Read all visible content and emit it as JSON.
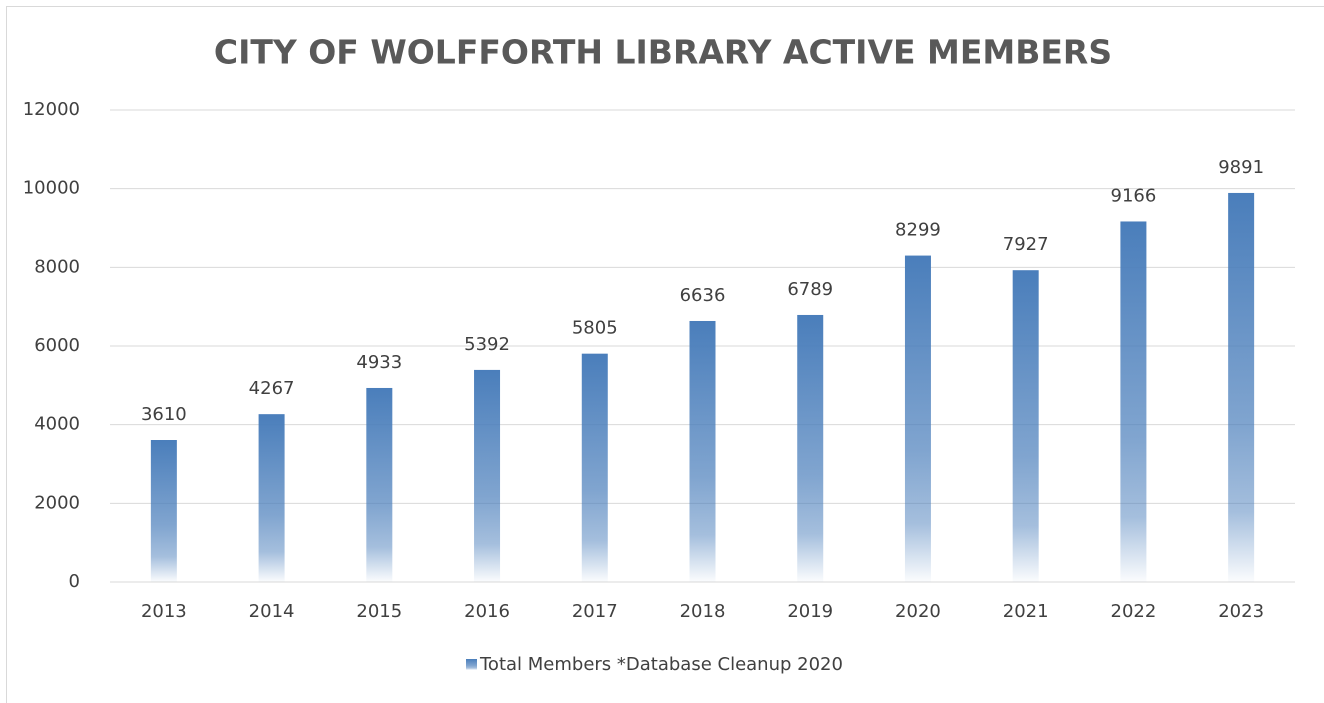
{
  "chart_data": {
    "type": "bar",
    "title": "CITY OF WOLFFORTH LIBRARY ACTIVE MEMBERS",
    "categories": [
      "2013",
      "2014",
      "2015",
      "2016",
      "2017",
      "2018",
      "2019",
      "2020",
      "2021",
      "2022",
      "2023"
    ],
    "series": [
      {
        "name": "Total Members *Database Cleanup 2020",
        "color": "#4a7ebb",
        "values": [
          3610,
          4267,
          4933,
          5392,
          5805,
          6636,
          6789,
          8299,
          7927,
          9166,
          9891
        ]
      }
    ],
    "ylim": [
      0,
      12000
    ],
    "yticks": [
      0,
      2000,
      4000,
      6000,
      8000,
      10000,
      12000
    ],
    "grid": true,
    "legend": "bottom",
    "data_labels": true
  }
}
